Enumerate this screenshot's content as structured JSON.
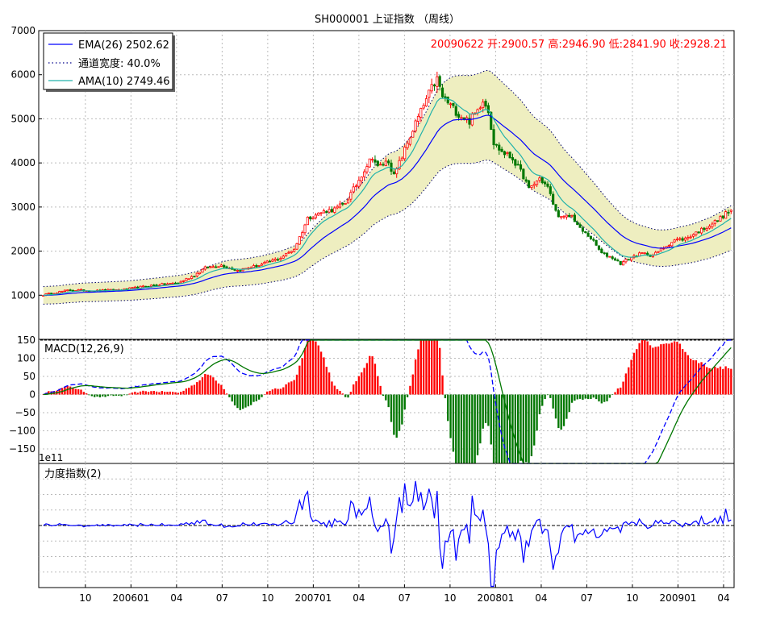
{
  "chart_data": [
    {
      "type": "candlestick",
      "title": "SH000001 上证指数 （周线）",
      "ohlc_label": "20090622 开:2900.57 高:2946.90 低:2841.90 收:2928.21",
      "ylim": [
        0,
        7000
      ],
      "yticks": [
        1000,
        2000,
        3000,
        4000,
        5000,
        6000,
        7000
      ],
      "grid": true,
      "legend_position": "top-left",
      "legend": [
        {
          "label": "EMA(26)  2502.62",
          "style": "solid",
          "color": "#0000ff"
        },
        {
          "label": "通道宽度: 40.0%",
          "style": "dotted",
          "color": "#00008b"
        },
        {
          "label": "AMA(10)  2749.46",
          "style": "solid",
          "color": "#20b2aa"
        }
      ],
      "band_width_fraction": 0.4,
      "x_tick_labels": [
        "10",
        "200601",
        "04",
        "07",
        "10",
        "200701",
        "04",
        "07",
        "10",
        "200801",
        "04",
        "07",
        "10",
        "200901",
        "04"
      ],
      "close_keypoints": [
        [
          0,
          1010
        ],
        [
          10,
          1120
        ],
        [
          20,
          1100
        ],
        [
          30,
          1130
        ],
        [
          40,
          1220
        ],
        [
          50,
          1280
        ],
        [
          56,
          1450
        ],
        [
          60,
          1620
        ],
        [
          66,
          1680
        ],
        [
          72,
          1560
        ],
        [
          80,
          1680
        ],
        [
          88,
          1850
        ],
        [
          93,
          2050
        ],
        [
          96,
          2450
        ],
        [
          98,
          2750
        ],
        [
          104,
          2900
        ],
        [
          108,
          2950
        ],
        [
          112,
          3100
        ],
        [
          116,
          3500
        ],
        [
          119,
          3850
        ],
        [
          122,
          4150
        ],
        [
          124,
          3900
        ],
        [
          128,
          4050
        ],
        [
          130,
          3700
        ],
        [
          134,
          4300
        ],
        [
          138,
          4900
        ],
        [
          141,
          5300
        ],
        [
          144,
          5700
        ],
        [
          146,
          5900
        ],
        [
          148,
          5500
        ],
        [
          151,
          5300
        ],
        [
          154,
          5100
        ],
        [
          158,
          4950
        ],
        [
          161,
          5200
        ],
        [
          163,
          5450
        ],
        [
          165,
          5200
        ],
        [
          167,
          4450
        ],
        [
          170,
          4250
        ],
        [
          174,
          4100
        ],
        [
          178,
          3700
        ],
        [
          180,
          3400
        ],
        [
          184,
          3650
        ],
        [
          187,
          3450
        ],
        [
          190,
          2900
        ],
        [
          192,
          2750
        ],
        [
          196,
          2800
        ],
        [
          199,
          2500
        ],
        [
          203,
          2300
        ],
        [
          207,
          1950
        ],
        [
          211,
          1850
        ],
        [
          214,
          1720
        ],
        [
          218,
          1860
        ],
        [
          222,
          1950
        ],
        [
          226,
          1900
        ],
        [
          230,
          2080
        ],
        [
          234,
          2250
        ],
        [
          238,
          2280
        ],
        [
          242,
          2420
        ],
        [
          246,
          2550
        ],
        [
          250,
          2700
        ],
        [
          253,
          2850
        ],
        [
          255,
          2928
        ]
      ],
      "last": {
        "open": 2900.57,
        "high": 2946.9,
        "low": 2841.9,
        "close": 2928.21
      },
      "ema_last": 2502.62,
      "ama_last": 2749.46,
      "colors": {
        "up": "#ff0000",
        "down": "#007700",
        "ema": "#0000ff",
        "ama": "#20b2aa",
        "band_fill": "#eeeec0",
        "band_edge": "#000066"
      }
    },
    {
      "type": "bar",
      "label": "MACD(12,26,9)",
      "ylim": [
        -190,
        150
      ],
      "yticks": [
        150,
        100,
        50,
        0,
        -50,
        -100,
        -150
      ],
      "ytick_labels": [
        "150",
        "100",
        "50",
        "0",
        "−50",
        "−100",
        "−150"
      ],
      "grid": true,
      "colors": {
        "positive": "#ff0000",
        "negative": "#007700",
        "macd_line": "#0000ff",
        "signal_line": "#007700"
      }
    },
    {
      "type": "line",
      "label": "力度指数(2)",
      "scale_label": "1e11",
      "ylim": [
        -1,
        1
      ],
      "grid": true,
      "colors": {
        "line": "#0000ff",
        "zero": "#000000"
      }
    }
  ]
}
